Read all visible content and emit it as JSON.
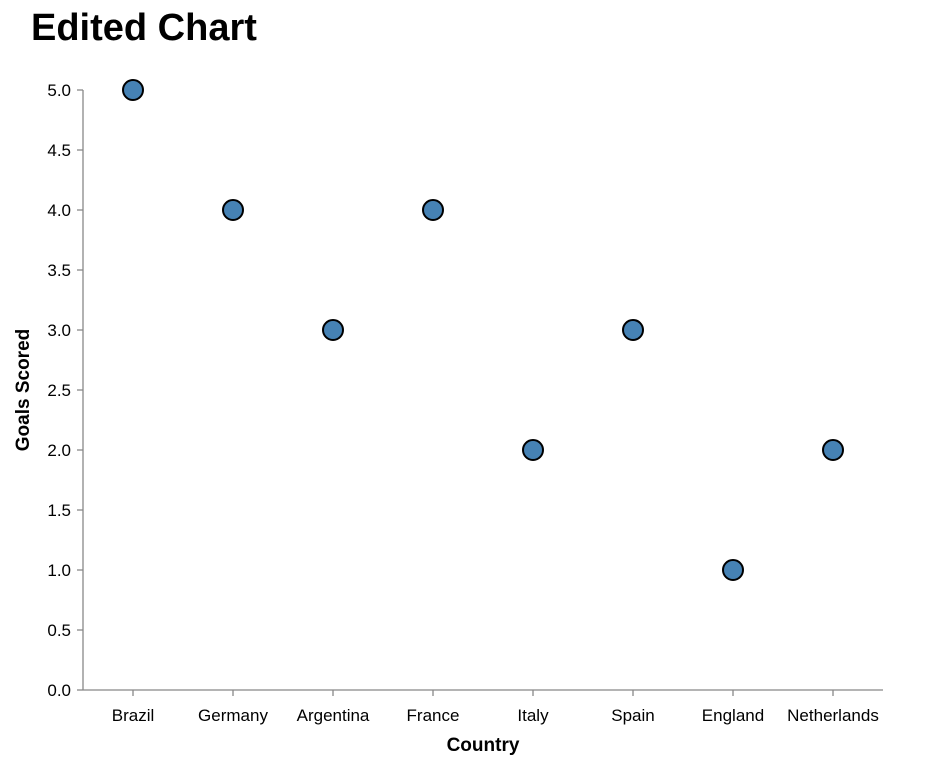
{
  "chart_data": {
    "type": "scatter",
    "title": "Edited Chart",
    "xlabel": "Country",
    "ylabel": "Goals Scored",
    "categories": [
      "Brazil",
      "Germany",
      "Argentina",
      "France",
      "Italy",
      "Spain",
      "England",
      "Netherlands"
    ],
    "values": [
      5,
      4,
      3,
      4,
      2,
      3,
      1,
      2
    ],
    "ylim": [
      0,
      5
    ],
    "yticks": [
      "0.0",
      "0.5",
      "1.0",
      "1.5",
      "2.0",
      "2.5",
      "3.0",
      "3.5",
      "4.0",
      "4.5",
      "5.0"
    ],
    "grid": false,
    "point_color": "#4682b4"
  }
}
